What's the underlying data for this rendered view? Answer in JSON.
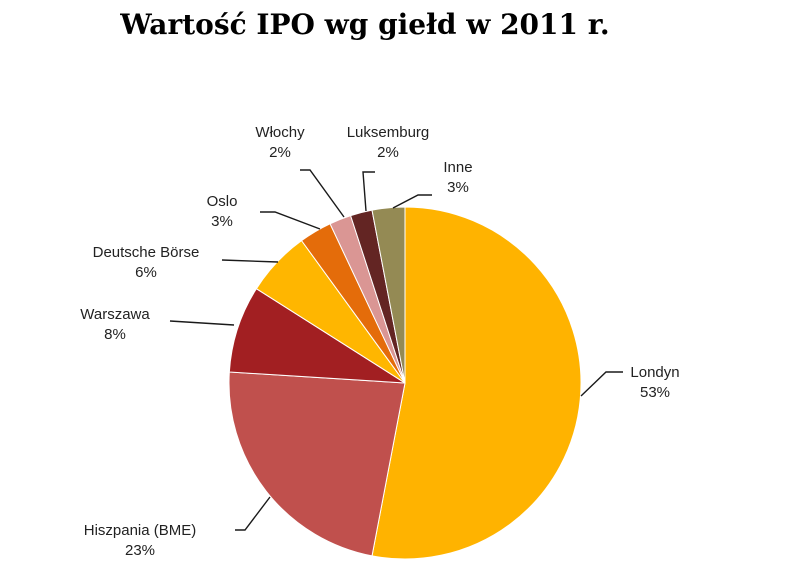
{
  "chart_data": {
    "type": "pie",
    "title": "Wartość IPO wg giełd w 2011 r.",
    "slices": [
      {
        "name": "Londyn",
        "value": 53,
        "label": "53%",
        "color": "#FFB300"
      },
      {
        "name": "Hiszpania (BME)",
        "value": 23,
        "label": "23%",
        "color": "#C0504D"
      },
      {
        "name": "Warszawa",
        "value": 8,
        "label": "8%",
        "color": "#A21F22"
      },
      {
        "name": "Deutsche Börse",
        "value": 6,
        "label": "6%",
        "color": "#FFB600"
      },
      {
        "name": "Oslo",
        "value": 3,
        "label": "3%",
        "color": "#E46C0A"
      },
      {
        "name": "Włochy",
        "value": 2,
        "label": "2%",
        "color": "#DA9694"
      },
      {
        "name": "Luksemburg",
        "value": 2,
        "label": "2%",
        "color": "#632523"
      },
      {
        "name": "Inne",
        "value": 3,
        "label": "3%",
        "color": "#948A54"
      }
    ],
    "start_angle": "12 o'clock",
    "direction": "clockwise",
    "legend": "none"
  }
}
